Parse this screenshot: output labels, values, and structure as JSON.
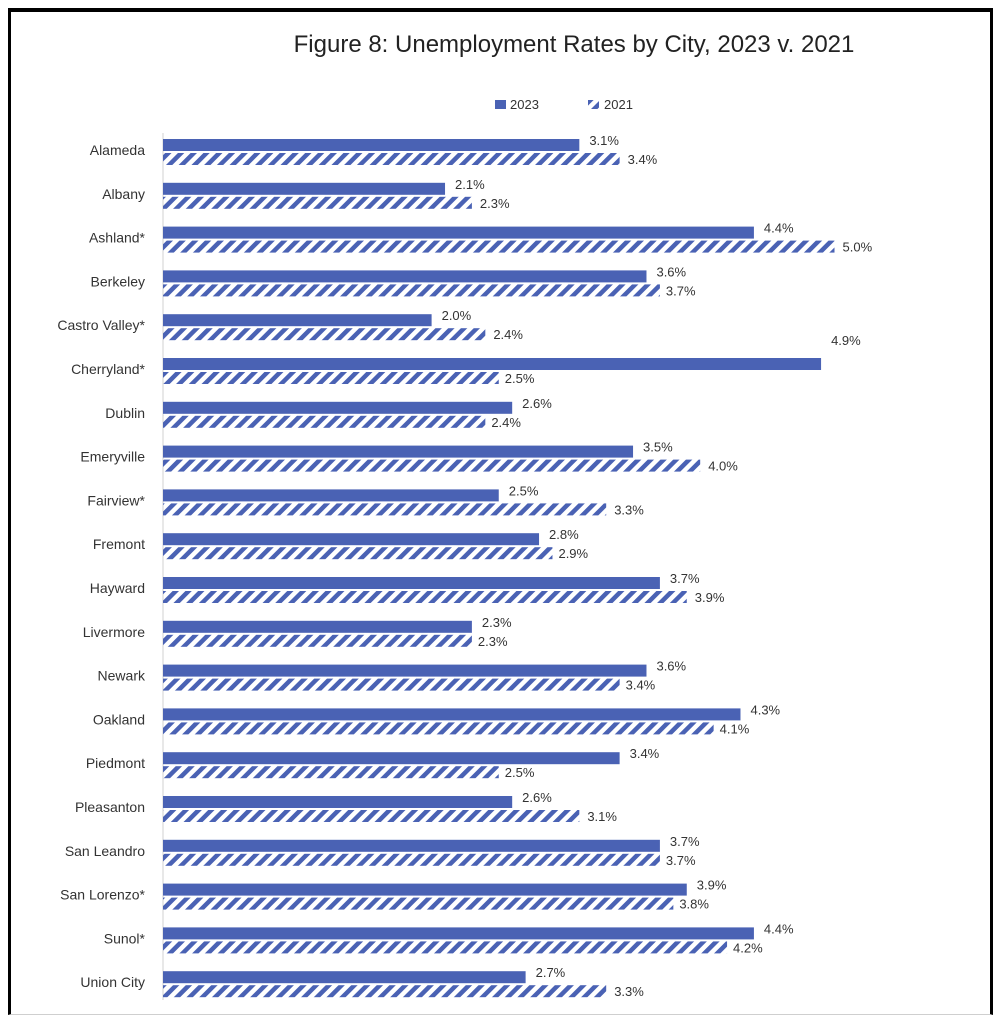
{
  "chart_data": {
    "type": "bar",
    "orientation": "horizontal",
    "title": "Figure 8: Unemployment Rates by City, 2023 v. 2021",
    "legend_position": "top",
    "grid": false,
    "xlim": [
      0,
      5.1
    ],
    "categories": [
      "Alameda",
      "Albany",
      "Ashland*",
      "Berkeley",
      "Castro Valley*",
      "Cherryland*",
      "Dublin",
      "Emeryville",
      "Fairview*",
      "Fremont",
      "Hayward",
      "Livermore",
      "Newark",
      "Oakland",
      "Piedmont",
      "Pleasanton",
      "San Leandro",
      "San Lorenzo*",
      "Sunol*",
      "Union City"
    ],
    "series": [
      {
        "name": "2023",
        "color": "#4a62b4",
        "pattern": "solid",
        "values": [
          3.1,
          2.1,
          4.4,
          3.6,
          2.0,
          4.9,
          2.6,
          3.5,
          2.5,
          2.8,
          3.7,
          2.3,
          3.6,
          4.3,
          3.4,
          2.6,
          3.7,
          3.9,
          4.4,
          2.7
        ],
        "labels": [
          "3.1%",
          "2.1%",
          "4.4%",
          "3.6%",
          "2.0%",
          "4.9%",
          "2.6%",
          "3.5%",
          "2.5%",
          "2.8%",
          "3.7%",
          "2.3%",
          "3.6%",
          "4.3%",
          "3.4%",
          "2.6%",
          "3.7%",
          "3.9%",
          "4.4%",
          "2.7%"
        ]
      },
      {
        "name": "2021",
        "color": "#4a62b4",
        "pattern": "diagonal-stripes",
        "values": [
          3.4,
          2.3,
          5.0,
          3.7,
          2.4,
          2.5,
          2.4,
          4.0,
          3.3,
          2.9,
          3.9,
          2.3,
          3.4,
          4.1,
          2.5,
          3.1,
          3.7,
          3.8,
          4.2,
          3.3
        ],
        "labels": [
          "3.4%",
          "2.3%",
          "5.0%",
          "3.7%",
          "2.4%",
          "2.5%",
          "2.4%",
          "4.0%",
          "3.3%",
          "2.9%",
          "3.9%",
          "2.3%",
          "3.4%",
          "4.1%",
          "2.5%",
          "3.1%",
          "3.7%",
          "3.8%",
          "4.2%",
          "3.3%"
        ]
      }
    ]
  }
}
